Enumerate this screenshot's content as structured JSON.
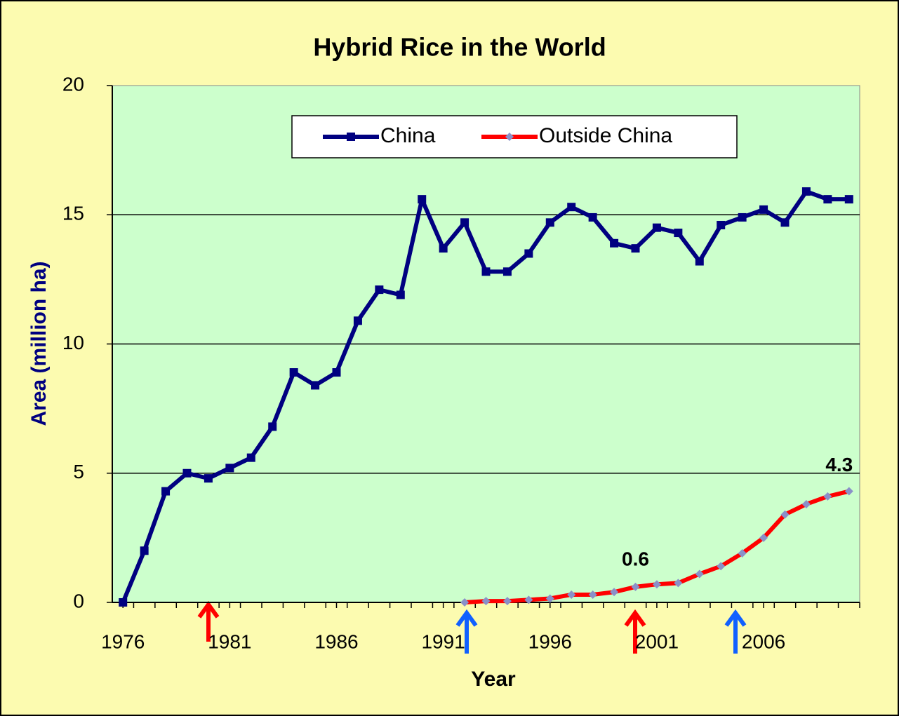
{
  "chart_data": {
    "type": "line",
    "title": "Hybrid Rice in the World",
    "xlabel": "Year",
    "ylabel": "Area (million ha)",
    "x": [
      1976,
      1977,
      1978,
      1979,
      1980,
      1981,
      1982,
      1983,
      1984,
      1985,
      1986,
      1987,
      1988,
      1989,
      1990,
      1991,
      1992,
      1993,
      1994,
      1995,
      1996,
      1997,
      1998,
      1999,
      2000,
      2001,
      2002,
      2003,
      2004,
      2005,
      2006,
      2007,
      2008,
      2009,
      2010
    ],
    "series": [
      {
        "name": "China",
        "color": "#000080",
        "marker_color": "#000080",
        "values": [
          0.0,
          2.0,
          4.3,
          5.0,
          4.8,
          5.2,
          5.6,
          6.8,
          8.9,
          8.4,
          8.9,
          10.9,
          12.1,
          11.9,
          15.6,
          13.7,
          14.7,
          12.8,
          12.8,
          13.5,
          14.7,
          15.3,
          14.9,
          13.9,
          13.7,
          14.5,
          14.3,
          13.2,
          14.6,
          14.9,
          15.2,
          14.7,
          15.9,
          15.6,
          15.6
        ]
      },
      {
        "name": "Outside China",
        "color": "#ff0000",
        "marker_color": "#8a90c8",
        "values": [
          null,
          null,
          null,
          null,
          null,
          null,
          null,
          null,
          null,
          null,
          null,
          null,
          null,
          null,
          null,
          null,
          0.0,
          0.05,
          0.05,
          0.1,
          0.15,
          0.3,
          0.3,
          0.4,
          0.6,
          0.7,
          0.75,
          1.1,
          1.4,
          1.9,
          2.5,
          3.4,
          3.8,
          4.1,
          4.3
        ]
      }
    ],
    "xlim": [
      1975.5,
      2010.5
    ],
    "xticks": [
      1976,
      1981,
      1986,
      1991,
      1996,
      2001,
      2006
    ],
    "ylim": [
      0,
      20
    ],
    "yticks": [
      0,
      5,
      10,
      15,
      20
    ],
    "grid": true,
    "legend": "top"
  }
}
